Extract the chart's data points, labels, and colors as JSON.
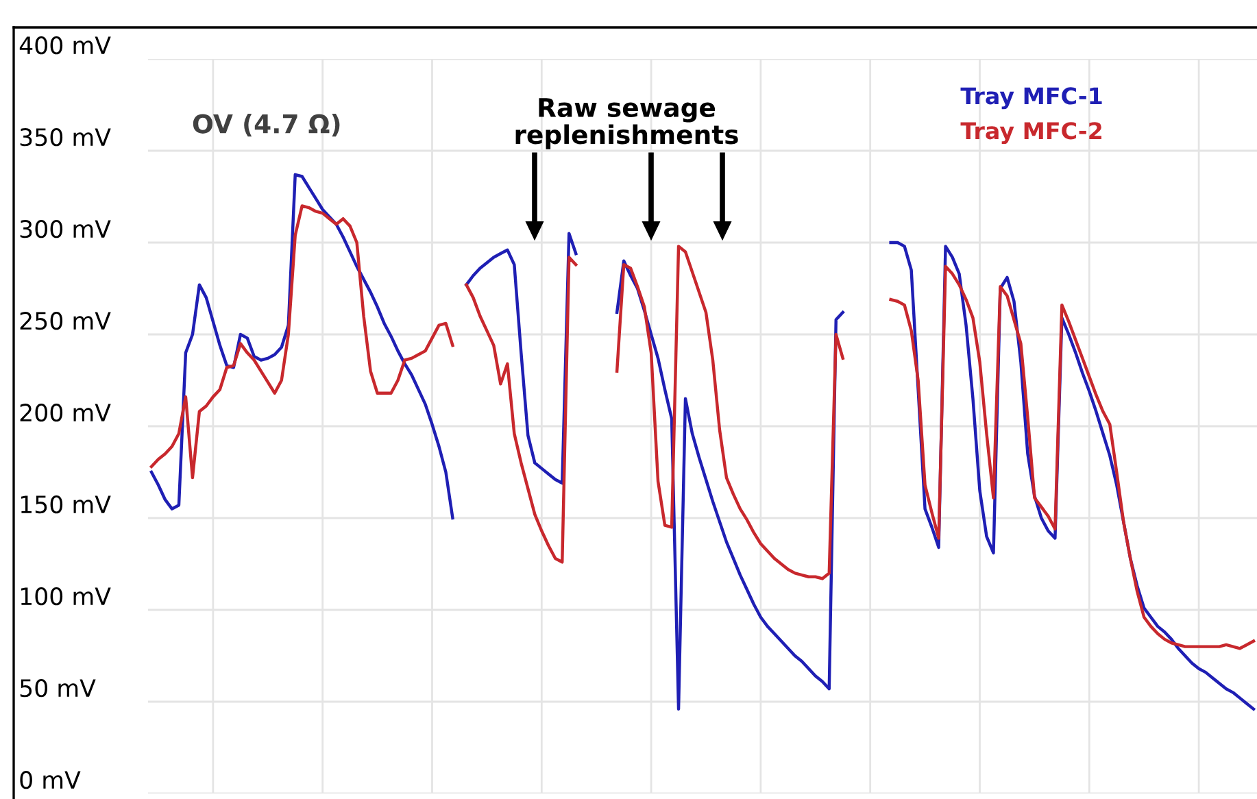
{
  "chart_data": {
    "type": "line",
    "categories": [
      null,
      null,
      null,
      null,
      null,
      null,
      null,
      null,
      null,
      null,
      null,
      null,
      null,
      null,
      null,
      null,
      null,
      null,
      null,
      null,
      null,
      null,
      null,
      null,
      null,
      null,
      null,
      null,
      null,
      null,
      null,
      null,
      null,
      null,
      null,
      null,
      null,
      null,
      null,
      null,
      null,
      null,
      null,
      null,
      null,
      null,
      null,
      null,
      null,
      null,
      null,
      null,
      null,
      null,
      null,
      null,
      null,
      null,
      null,
      null,
      null,
      null,
      null,
      null,
      null,
      null,
      null,
      null,
      null,
      null,
      null,
      null,
      null,
      null,
      null,
      null,
      null,
      null,
      null,
      null,
      null,
      null,
      null,
      null,
      null,
      null,
      null,
      null,
      null,
      null,
      null,
      null,
      null,
      null,
      null,
      null,
      null,
      null,
      null,
      null,
      null,
      null,
      null,
      null,
      null,
      null,
      null,
      null,
      null,
      null,
      null,
      null,
      null,
      null,
      null,
      null,
      null,
      null,
      null,
      null,
      null,
      null,
      null,
      null,
      null,
      null,
      null,
      null,
      null,
      null,
      null,
      null,
      null,
      null,
      null,
      null,
      null,
      null,
      null,
      null,
      null,
      null,
      null,
      null,
      null,
      null,
      null,
      null,
      null,
      null,
      null,
      null,
      null,
      null,
      null,
      null,
      null,
      null,
      null,
      null,
      null,
      null
    ],
    "series": [
      {
        "name": "Tray MFC-1",
        "color": "#1f1fb4",
        "values": [
          175,
          168,
          160,
          155,
          157,
          240,
          250,
          277,
          270,
          257,
          244,
          233,
          232,
          250,
          248,
          238,
          236,
          237,
          239,
          243,
          255,
          337,
          336,
          330,
          324,
          318,
          314,
          310,
          303,
          295,
          287,
          280,
          273,
          265,
          256,
          249,
          241,
          234,
          228,
          220,
          212,
          201,
          189,
          175,
          150,
          null,
          277,
          282,
          286,
          289,
          292,
          294,
          296,
          288,
          240,
          195,
          180,
          177,
          174,
          171,
          169,
          305,
          294,
          null,
          null,
          null,
          null,
          null,
          262,
          290,
          282,
          275,
          263,
          250,
          237,
          220,
          204,
          46,
          215,
          196,
          183,
          171,
          159,
          148,
          137,
          128,
          119,
          111,
          103,
          96,
          91,
          87,
          83,
          79,
          75,
          72,
          68,
          64,
          61,
          57,
          258,
          262,
          null,
          null,
          null,
          null,
          null,
          null,
          300,
          300,
          298,
          285,
          220,
          155,
          145,
          134,
          298,
          292,
          283,
          255,
          215,
          165,
          140,
          131,
          275,
          281,
          268,
          235,
          185,
          162,
          150,
          143,
          139,
          259,
          250,
          240,
          229,
          219,
          208,
          196,
          184,
          168,
          148,
          128,
          113,
          101,
          96,
          91,
          88,
          84,
          79,
          75,
          71,
          68,
          66,
          63,
          60,
          57,
          55,
          52,
          49,
          46
        ]
      },
      {
        "name": "Tray MFC-2",
        "color": "#c8282d",
        "values": [
          178,
          182,
          185,
          189,
          196,
          216,
          172,
          208,
          211,
          216,
          220,
          232,
          233,
          245,
          240,
          236,
          230,
          224,
          218,
          225,
          250,
          304,
          320,
          319,
          317,
          316,
          313,
          310,
          313,
          309,
          300,
          260,
          230,
          218,
          218,
          218,
          225,
          236,
          237,
          239,
          241,
          248,
          255,
          256,
          244,
          null,
          277,
          270,
          260,
          252,
          244,
          223,
          234,
          196,
          180,
          166,
          152,
          143,
          135,
          128,
          126,
          292,
          288,
          null,
          null,
          null,
          null,
          null,
          230,
          288,
          286,
          276,
          265,
          240,
          170,
          146,
          145,
          298,
          295,
          284,
          273,
          262,
          236,
          198,
          172,
          163,
          155,
          149,
          142,
          136,
          132,
          128,
          125,
          122,
          120,
          119,
          118,
          118,
          117,
          120,
          250,
          237,
          null,
          null,
          null,
          null,
          null,
          null,
          269,
          268,
          266,
          252,
          225,
          168,
          153,
          139,
          287,
          283,
          277,
          269,
          259,
          235,
          196,
          161,
          276,
          271,
          258,
          245,
          205,
          161,
          156,
          151,
          144,
          266,
          257,
          247,
          237,
          227,
          217,
          208,
          201,
          175,
          148,
          128,
          110,
          96,
          91,
          87,
          84,
          82,
          81,
          80,
          80,
          80,
          80,
          80,
          80,
          81,
          80,
          79,
          81,
          83
        ]
      }
    ],
    "ylim": [
      0,
      400
    ],
    "yticks": [
      {
        "value": 0,
        "label": "0 mV"
      },
      {
        "value": 50,
        "label": "50 mV"
      },
      {
        "value": 100,
        "label": "100 mV"
      },
      {
        "value": 150,
        "label": "150 mV"
      },
      {
        "value": 200,
        "label": "200 mV"
      },
      {
        "value": 250,
        "label": "250 mV"
      },
      {
        "value": 300,
        "label": "300 mV"
      },
      {
        "value": 350,
        "label": "350 mV"
      },
      {
        "value": 400,
        "label": "400 mV"
      }
    ],
    "tick_labels": "y",
    "grid": true,
    "legend": "top right",
    "marker": "none",
    "line_style": "solid",
    "annotations": [
      "OV (4.7 Ω)",
      "Raw sewage\nreplenishments"
    ]
  }
}
